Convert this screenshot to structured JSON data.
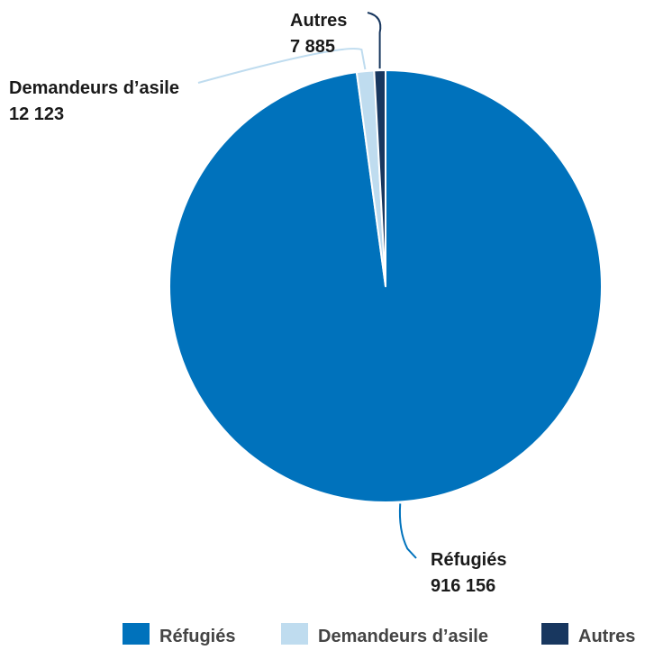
{
  "chart_data": {
    "type": "pie",
    "categories": [
      "Réfugiés",
      "Demandeurs d’asile",
      "Autres"
    ],
    "values": [
      916156,
      12123,
      7885
    ],
    "value_labels": [
      "916 156",
      "12 123",
      "7 885"
    ],
    "colors": [
      "#0072bc",
      "#bfdcef",
      "#18375f"
    ],
    "title": "",
    "legend": "bottom-right"
  }
}
